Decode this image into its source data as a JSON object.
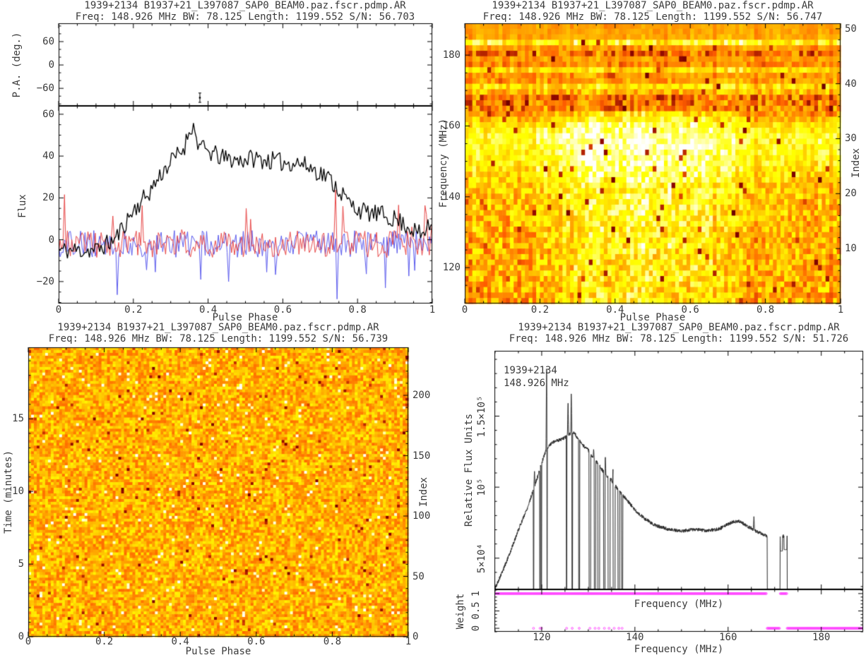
{
  "colors": {
    "background": "#ffffff",
    "frame": "#000000",
    "text": "#3a3a3a",
    "profile_total": "#000000",
    "profile_linear": "#e84848",
    "profile_circular": "#5b5bee",
    "bandpass_line": "#2b2b2b",
    "weight_marker": "#ff44ff",
    "heat_low": "#5b0000",
    "heat_mid": "#ff9900",
    "heat_high": "#ffffff"
  },
  "chart_data": [
    {
      "id": "pulse-profile",
      "type": "line",
      "title": "1939+2134 B1937+21_L397087_SAP0_BEAM0.paz.fscr.pdmp.AR",
      "subtitle": "Freq: 148.926 MHz BW: 78.125 Length: 1199.552 S/N: 56.703",
      "xlabel": "Pulse Phase",
      "xlim": [
        0,
        1
      ],
      "xticks": [
        0,
        0.2,
        0.4,
        0.6,
        0.8,
        1
      ],
      "xtick_labels": [
        "0",
        "0.2",
        "0.4",
        "0.6",
        "0.8",
        "1"
      ],
      "xtick_minor": 0.05,
      "pa_panel": {
        "ylabel": "P.A. (deg.)",
        "ylim": [
          -105,
          107
        ],
        "ytick_values": [
          60,
          0,
          -60
        ],
        "ytick_labels": [
          "60",
          "0",
          "−60"
        ],
        "ytick_minor": 20,
        "point": {
          "phase": 0.378,
          "pa_deg": -84,
          "err_deg": 12
        }
      },
      "flux_panel": {
        "ylabel": "Flux",
        "ylim": [
          -30.5,
          64
        ],
        "ytick_values": [
          60,
          40,
          20,
          0,
          -20
        ],
        "ytick_labels": [
          "60",
          "40",
          "20",
          "0",
          "−20"
        ],
        "ytick_minor": 5,
        "series": [
          {
            "name": "total-intensity",
            "color": "#000000",
            "line_width": 1.3,
            "bins": 256,
            "noise_amp": 4.6,
            "seed": 11,
            "envelope": [
              [
                0,
                -5
              ],
              [
                0.1,
                -5
              ],
              [
                0.15,
                0
              ],
              [
                0.2,
                14
              ],
              [
                0.24,
                22
              ],
              [
                0.28,
                33
              ],
              [
                0.32,
                41
              ],
              [
                0.36,
                46
              ],
              [
                0.4,
                42
              ],
              [
                0.44,
                39
              ],
              [
                0.48,
                38
              ],
              [
                0.52,
                39
              ],
              [
                0.56,
                38
              ],
              [
                0.6,
                37
              ],
              [
                0.64,
                37
              ],
              [
                0.68,
                34
              ],
              [
                0.72,
                30
              ],
              [
                0.75,
                24
              ],
              [
                0.78,
                17
              ],
              [
                0.82,
                13
              ],
              [
                0.86,
                12
              ],
              [
                0.9,
                10
              ],
              [
                0.94,
                6
              ],
              [
                0.97,
                2
              ],
              [
                1,
                8
              ]
            ],
            "peak": {
              "phase": 0.355,
              "add": 9,
              "sigma": 0.01
            }
          },
          {
            "name": "linear-polarization",
            "color": "#e84848",
            "line_width": 1,
            "bins": 256,
            "noise_amp": 6.5,
            "seed": 23,
            "mean": -2,
            "spike_prob": 0.05,
            "spike_amp": 16
          },
          {
            "name": "circular-polarization",
            "color": "#5b5bee",
            "line_width": 1,
            "bins": 256,
            "noise_amp": 6.5,
            "seed": 37,
            "mean": -2,
            "spike_prob": 0.04,
            "spike_amp": -16
          }
        ]
      }
    },
    {
      "id": "phase-frequency-heatmap",
      "type": "heatmap",
      "title": "1939+2134 B1937+21_L397087_SAP0_BEAM0.paz.fscr.pdmp.AR",
      "subtitle": "Freq: 148.926 MHz BW: 78.125 Length: 1199.552 S/N: 56.747",
      "xlabel": "Pulse Phase",
      "ylabel": "Frequency (MHz)",
      "ylabel_right": "Index",
      "xlim": [
        0,
        1
      ],
      "xticks": [
        0,
        0.2,
        0.4,
        0.6,
        0.8,
        1
      ],
      "xtick_labels": [
        "0",
        "0.2",
        "0.4",
        "0.6",
        "0.8",
        "1"
      ],
      "xtick_minor": 0.05,
      "ylim": [
        109.86,
        188.99
      ],
      "ytick_values": [
        120,
        140,
        160,
        180
      ],
      "ytick_labels": [
        "120",
        "140",
        "160",
        "180"
      ],
      "ytick_minor": 5,
      "index_lim": [
        0,
        51
      ],
      "index_tick_values": [
        10,
        20,
        30,
        40,
        50
      ],
      "index_tick_labels": [
        "10",
        "20",
        "30",
        "40",
        "50"
      ],
      "index_tick_minor": 2,
      "cols": 100,
      "rows": 51,
      "seed": 7,
      "dark_speck_prob": 0.02,
      "row_profile": [
        [
          0.56,
          0.04
        ],
        [
          0.57,
          0.05
        ],
        [
          0.58,
          0.07
        ],
        [
          0.78,
          0.16
        ],
        [
          0.55,
          0.09
        ],
        [
          0.44,
          0.2
        ],
        [
          0.55,
          0.09
        ],
        [
          0.52,
          0.11
        ],
        [
          0.71,
          0.14
        ],
        [
          0.55,
          0.1
        ],
        [
          0.56,
          0.11
        ],
        [
          0.72,
          0.14
        ],
        [
          0.62,
          0.13
        ],
        [
          0.46,
          0.2
        ],
        [
          0.47,
          0.19
        ],
        [
          0.5,
          0.17
        ],
        [
          0.56,
          0.14
        ],
        [
          0.63,
          0.14
        ],
        [
          0.72,
          0.13
        ],
        [
          0.76,
          0.12
        ],
        [
          0.79,
          0.12
        ],
        [
          0.8,
          0.12
        ],
        [
          0.79,
          0.12
        ],
        [
          0.78,
          0.12
        ],
        [
          0.77,
          0.13
        ],
        [
          0.75,
          0.13
        ],
        [
          0.73,
          0.14
        ],
        [
          0.7,
          0.14
        ],
        [
          0.68,
          0.15
        ],
        [
          0.66,
          0.15
        ],
        [
          0.65,
          0.16
        ],
        [
          0.64,
          0.16
        ],
        [
          0.64,
          0.16
        ],
        [
          0.63,
          0.17
        ],
        [
          0.63,
          0.17
        ],
        [
          0.62,
          0.17
        ],
        [
          0.62,
          0.17
        ],
        [
          0.61,
          0.17
        ],
        [
          0.61,
          0.18
        ],
        [
          0.6,
          0.18
        ],
        [
          0.6,
          0.18
        ],
        [
          0.6,
          0.18
        ],
        [
          0.59,
          0.18
        ],
        [
          0.59,
          0.18
        ],
        [
          0.59,
          0.18
        ],
        [
          0.58,
          0.18
        ],
        [
          0.58,
          0.18
        ],
        [
          0.58,
          0.18
        ],
        [
          0.58,
          0.18
        ],
        [
          0.57,
          0.18
        ],
        [
          0.57,
          0.18
        ]
      ],
      "pulse_boost": {
        "row_start": 16,
        "amount": 0.18,
        "phase_range": [
          0.18,
          0.75
        ]
      }
    },
    {
      "id": "phase-time-heatmap",
      "type": "heatmap",
      "title": "1939+2134 B1937+21_L397087_SAP0_BEAM0.paz.fscr.pdmp.AR",
      "subtitle": "Freq: 148.926 MHz BW: 78.125 Length: 1199.552 S/N: 56.739",
      "xlabel": "Pulse Phase",
      "ylabel": "Time (minutes)",
      "ylabel_right": "Index",
      "xlim": [
        0,
        1
      ],
      "xticks": [
        0,
        0.2,
        0.4,
        0.6,
        0.8,
        1
      ],
      "xtick_labels": [
        "0",
        "0.2",
        "0.4",
        "0.6",
        "0.8",
        "1"
      ],
      "xtick_minor": 0.05,
      "ylim": [
        0,
        19.93
      ],
      "ytick_values": [
        0,
        5,
        10,
        15
      ],
      "ytick_labels": [
        "0",
        "5",
        "10",
        "15"
      ],
      "ytick_minor": 1,
      "index_lim": [
        0,
        239.8
      ],
      "index_tick_values": [
        0,
        50,
        100,
        150,
        200
      ],
      "index_tick_labels": [
        "0",
        "50",
        "100",
        "150",
        "200"
      ],
      "index_tick_minor": 10,
      "cols": 135,
      "rows": 103,
      "seed": 99,
      "mean": 0.6,
      "variance": 0.15,
      "dark_speck_prob": 0.012,
      "bright_speck_prob": 0.02
    },
    {
      "id": "bandpass",
      "type": "line",
      "title": "1939+2134 B1937+21_L397087_SAP0_BEAM0.paz.fscr.pdmp.AR",
      "subtitle": "Freq: 148.926 MHz BW: 78.125 Length: 1199.552 S/N: 51.726",
      "annotation_lines": [
        "1939+2134",
        "148.926 MHz"
      ],
      "xlabel": "Frequency (MHz)",
      "xlim": [
        109.86,
        188.99
      ],
      "xticks": [
        120,
        140,
        160,
        180
      ],
      "xtick_labels": [
        "120",
        "140",
        "160",
        "180"
      ],
      "xtick_minor": 5,
      "flux_panel": {
        "ylabel": "Relative Flux Units",
        "ylim": [
          28000,
          196000
        ],
        "ytick_values": [
          150000,
          100000,
          50000
        ],
        "ytick_labels": [
          "1.5×10⁵",
          "10⁵",
          "5×10⁴"
        ],
        "ytick_minor": 10000,
        "seed": 5,
        "curve_mhz_kflux": [
          [
            110,
            29
          ],
          [
            111,
            36
          ],
          [
            112,
            44
          ],
          [
            113,
            52
          ],
          [
            114,
            61
          ],
          [
            115,
            70
          ],
          [
            116,
            78
          ],
          [
            117,
            86
          ],
          [
            118,
            96
          ],
          [
            119,
            106
          ],
          [
            120,
            117
          ],
          [
            120.7,
            124
          ],
          [
            121.5,
            129
          ],
          [
            122.5,
            132
          ],
          [
            123.5,
            133
          ],
          [
            124.5,
            134
          ],
          [
            125.5,
            136
          ],
          [
            126.5,
            139
          ],
          [
            127.2,
            137
          ],
          [
            128,
            133
          ],
          [
            129,
            129
          ],
          [
            130,
            126
          ],
          [
            131,
            121
          ],
          [
            132,
            117
          ],
          [
            133,
            112
          ],
          [
            134,
            108
          ],
          [
            135,
            105
          ],
          [
            136,
            100
          ],
          [
            137,
            96
          ],
          [
            138,
            92
          ],
          [
            139,
            88
          ],
          [
            140,
            84
          ],
          [
            141,
            81
          ],
          [
            142,
            78
          ],
          [
            143,
            76
          ],
          [
            144,
            74
          ],
          [
            145,
            72.5
          ],
          [
            146,
            71.5
          ],
          [
            147,
            70.5
          ],
          [
            148,
            70
          ],
          [
            149,
            69.5
          ],
          [
            150,
            69
          ],
          [
            151,
            69.5
          ],
          [
            152,
            70
          ],
          [
            153,
            70
          ],
          [
            154,
            70
          ],
          [
            155,
            69.5
          ],
          [
            156,
            69.5
          ],
          [
            157,
            70
          ],
          [
            158,
            70.5
          ],
          [
            159,
            72
          ],
          [
            160,
            74
          ],
          [
            161,
            75.5
          ],
          [
            162,
            76
          ],
          [
            163,
            75
          ],
          [
            164,
            72.5
          ],
          [
            165,
            71
          ],
          [
            166,
            69
          ],
          [
            167,
            67.5
          ],
          [
            168.3,
            65.5
          ]
        ],
        "spikes_mhz_kflux": [
          [
            118.45,
            112
          ],
          [
            121.05,
            188
          ],
          [
            125.65,
            161
          ],
          [
            126.35,
            168
          ],
          [
            131.15,
            127
          ],
          [
            133.65,
            122
          ],
          [
            135.35,
            119
          ],
          [
            165.55,
            80
          ]
        ],
        "notches_mhz_width": [
          [
            118.25,
            0.12
          ],
          [
            119.65,
            0.15
          ],
          [
            119.95,
            0.12
          ],
          [
            121.15,
            0.08
          ],
          [
            125.35,
            0.12
          ],
          [
            126.55,
            0.15
          ],
          [
            128.05,
            0.22
          ],
          [
            130.35,
            0.35
          ],
          [
            131.45,
            0.3
          ],
          [
            132.25,
            0.38
          ],
          [
            133.45,
            0.3
          ],
          [
            134.45,
            0.45
          ],
          [
            135.55,
            0.42
          ],
          [
            136.55,
            0.36
          ],
          [
            137.25,
            0.28
          ]
        ],
        "zero_runs_mhz": [
          [
            168.4,
            171.15
          ],
          [
            172.68,
            188.99
          ]
        ],
        "blips_mhz_kflux": [
          [
            171.2,
            171.68,
            55
          ],
          [
            172.0,
            172.62,
            56
          ]
        ]
      },
      "weight_panel": {
        "ylabel": "Weight",
        "inner_label": "Frequency (MHz)",
        "ylim": [
          -0.1,
          1.12
        ],
        "ytick_values": [
          0,
          0.5,
          1
        ],
        "ytick_labels": [
          "0",
          "0.5",
          "1"
        ],
        "ytick_minor": 0.1,
        "channel_step_mhz": 0.1545,
        "one_runs_mhz": [
          [
            109.95,
            168.35
          ],
          [
            171.2,
            172.62
          ]
        ],
        "zero_points_mhz": [
          118.25,
          119.65,
          119.95,
          125.35,
          126.55,
          128.05,
          130.35,
          131.45,
          132.25,
          133.45,
          134.45,
          135.55,
          136.55,
          137.25
        ],
        "zero_runs_mhz": [
          [
            168.4,
            171.15
          ],
          [
            172.68,
            188.95
          ]
        ]
      }
    }
  ]
}
